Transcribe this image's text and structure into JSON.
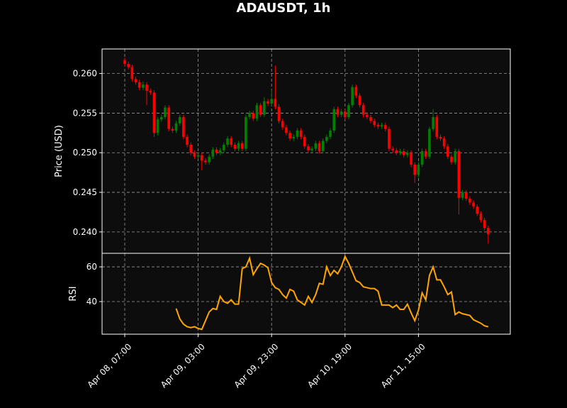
{
  "chart_data": [
    {
      "type": "candlestick",
      "title": "ADAUSDT, 1h",
      "ylabel": "Price (USD)",
      "up_color": "#008000",
      "down_color": "#ff0000",
      "grid": true,
      "ylim": [
        0.2373,
        0.2631
      ],
      "yticks": [
        {
          "value": 0.24,
          "label": "0.240"
        },
        {
          "value": 0.245,
          "label": "0.245"
        },
        {
          "value": 0.25,
          "label": "0.250"
        },
        {
          "value": 0.255,
          "label": "0.255"
        },
        {
          "value": 0.26,
          "label": "0.260"
        }
      ],
      "categories": [
        "Apr 08, 07:00",
        null,
        null,
        null,
        null,
        null,
        null,
        null,
        null,
        null,
        null,
        null,
        null,
        null,
        null,
        null,
        null,
        null,
        null,
        null,
        "Apr 09, 03:00",
        null,
        null,
        null,
        null,
        null,
        null,
        null,
        null,
        null,
        null,
        null,
        null,
        null,
        null,
        null,
        null,
        null,
        null,
        null,
        "Apr 09, 23:00",
        null,
        null,
        null,
        null,
        null,
        null,
        null,
        null,
        null,
        null,
        null,
        null,
        null,
        null,
        null,
        null,
        null,
        null,
        null,
        "Apr 10, 19:00",
        null,
        null,
        null,
        null,
        null,
        null,
        null,
        null,
        null,
        null,
        null,
        null,
        null,
        null,
        null,
        null,
        null,
        null,
        null,
        "Apr 11, 15:00",
        null,
        null,
        null,
        null,
        null,
        null,
        null,
        null,
        null,
        null,
        null,
        null,
        null,
        null,
        null,
        null,
        null,
        null,
        null
      ],
      "open": [
        0.2617,
        0.2612,
        0.2608,
        0.2593,
        0.2589,
        0.2582,
        0.2586,
        0.2578,
        0.2576,
        0.2525,
        0.2542,
        0.2545,
        0.2557,
        0.253,
        0.2528,
        0.2537,
        0.2545,
        0.252,
        0.251,
        0.25,
        0.2495,
        0.2497,
        0.249,
        0.2488,
        0.2495,
        0.2504,
        0.25,
        0.2503,
        0.251,
        0.2518,
        0.251,
        0.2505,
        0.2512,
        0.2505,
        0.2545,
        0.255,
        0.2543,
        0.256,
        0.2548,
        0.2565,
        0.2562,
        0.2568,
        0.2558,
        0.254,
        0.2532,
        0.2525,
        0.2518,
        0.252,
        0.2528,
        0.252,
        0.2508,
        0.2503,
        0.2505,
        0.2512,
        0.2502,
        0.2515,
        0.252,
        0.2528,
        0.2555,
        0.2548,
        0.2552,
        0.2545,
        0.256,
        0.2583,
        0.2572,
        0.256,
        0.2548,
        0.2545,
        0.254,
        0.2535,
        0.2533,
        0.2535,
        0.253,
        0.2505,
        0.2503,
        0.25,
        0.2502,
        0.2497,
        0.25,
        0.2485,
        0.2472,
        0.2485,
        0.2502,
        0.2495,
        0.253,
        0.2545,
        0.252,
        0.2518,
        0.2508,
        0.2495,
        0.2488,
        0.2502,
        0.2443,
        0.245,
        0.2442,
        0.2437,
        0.2432,
        0.2423,
        0.2415,
        0.2405
      ],
      "high": [
        0.262,
        0.2615,
        0.2611,
        0.2596,
        0.2592,
        0.259,
        0.2589,
        0.2581,
        0.2579,
        0.2545,
        0.2548,
        0.256,
        0.256,
        0.2533,
        0.254,
        0.2548,
        0.2548,
        0.2523,
        0.2513,
        0.2503,
        0.25,
        0.25,
        0.2493,
        0.2498,
        0.2507,
        0.2507,
        0.2506,
        0.2513,
        0.2521,
        0.2521,
        0.2513,
        0.2515,
        0.2515,
        0.2548,
        0.2553,
        0.2553,
        0.2563,
        0.2563,
        0.257,
        0.2568,
        0.258,
        0.261,
        0.2561,
        0.2543,
        0.2535,
        0.2528,
        0.2523,
        0.2531,
        0.2531,
        0.2523,
        0.2511,
        0.2508,
        0.2515,
        0.2515,
        0.2518,
        0.2523,
        0.2531,
        0.2558,
        0.2558,
        0.2555,
        0.2555,
        0.2563,
        0.2586,
        0.2586,
        0.2575,
        0.2563,
        0.2551,
        0.2548,
        0.2543,
        0.2538,
        0.2538,
        0.2538,
        0.2533,
        0.2508,
        0.2506,
        0.2505,
        0.2505,
        0.2503,
        0.2503,
        0.2488,
        0.2488,
        0.2505,
        0.2505,
        0.2533,
        0.2555,
        0.2548,
        0.2523,
        0.2521,
        0.2511,
        0.2498,
        0.2505,
        0.2505,
        0.2453,
        0.2453,
        0.2445,
        0.244,
        0.2435,
        0.2426,
        0.2418,
        0.2408
      ],
      "low": [
        0.2609,
        0.2605,
        0.259,
        0.2586,
        0.2579,
        0.2579,
        0.256,
        0.2573,
        0.252,
        0.2522,
        0.2539,
        0.2542,
        0.2527,
        0.2525,
        0.2525,
        0.2534,
        0.2517,
        0.2507,
        0.2497,
        0.2492,
        0.2492,
        0.2478,
        0.2485,
        0.2485,
        0.2492,
        0.2497,
        0.2497,
        0.25,
        0.2507,
        0.2507,
        0.2502,
        0.2502,
        0.2502,
        0.2502,
        0.2542,
        0.254,
        0.254,
        0.2545,
        0.2545,
        0.2559,
        0.2559,
        0.2555,
        0.2537,
        0.2529,
        0.2522,
        0.2515,
        0.2515,
        0.2517,
        0.2517,
        0.2505,
        0.25,
        0.25,
        0.2502,
        0.2499,
        0.2499,
        0.2512,
        0.2517,
        0.2525,
        0.2545,
        0.2545,
        0.2542,
        0.2542,
        0.2557,
        0.2569,
        0.2557,
        0.2545,
        0.2542,
        0.2537,
        0.2532,
        0.253,
        0.253,
        0.2527,
        0.2502,
        0.25,
        0.2497,
        0.2497,
        0.2494,
        0.2494,
        0.2482,
        0.2462,
        0.2469,
        0.2482,
        0.2492,
        0.2492,
        0.2527,
        0.2517,
        0.2515,
        0.2505,
        0.2492,
        0.2485,
        0.2485,
        0.2422,
        0.244,
        0.2439,
        0.2434,
        0.2429,
        0.242,
        0.2412,
        0.2402,
        0.2385
      ],
      "close": [
        0.2612,
        0.2608,
        0.2593,
        0.2589,
        0.2582,
        0.2586,
        0.2578,
        0.2576,
        0.2525,
        0.2542,
        0.2545,
        0.2557,
        0.253,
        0.2528,
        0.2537,
        0.2545,
        0.252,
        0.251,
        0.25,
        0.2495,
        0.2497,
        0.249,
        0.2488,
        0.2495,
        0.2504,
        0.25,
        0.2503,
        0.251,
        0.2518,
        0.251,
        0.2505,
        0.2512,
        0.2505,
        0.2545,
        0.255,
        0.2543,
        0.256,
        0.2548,
        0.2565,
        0.2562,
        0.2568,
        0.2558,
        0.254,
        0.2532,
        0.2525,
        0.2518,
        0.252,
        0.2528,
        0.252,
        0.2508,
        0.2503,
        0.2505,
        0.2512,
        0.2502,
        0.2515,
        0.252,
        0.2528,
        0.2555,
        0.2548,
        0.2552,
        0.2545,
        0.256,
        0.2583,
        0.2572,
        0.256,
        0.2548,
        0.2545,
        0.254,
        0.2535,
        0.2533,
        0.2535,
        0.253,
        0.2505,
        0.2503,
        0.25,
        0.2502,
        0.2497,
        0.25,
        0.2485,
        0.2472,
        0.2485,
        0.2502,
        0.2495,
        0.253,
        0.2545,
        0.252,
        0.2518,
        0.2508,
        0.2495,
        0.2488,
        0.2502,
        0.2443,
        0.245,
        0.2442,
        0.2437,
        0.2432,
        0.2423,
        0.2415,
        0.2405,
        0.2397
      ]
    },
    {
      "type": "line",
      "ylabel": "RSI",
      "color": "#ffa500",
      "grid": true,
      "ylim": [
        21.2,
        67.8
      ],
      "yticks": [
        40,
        60
      ],
      "values": [
        null,
        null,
        null,
        null,
        null,
        null,
        null,
        null,
        null,
        null,
        null,
        null,
        null,
        null,
        36,
        30,
        27,
        25.5,
        25,
        25.5,
        24.5,
        24,
        29,
        34,
        36,
        35.5,
        43,
        40,
        39,
        41,
        38.5,
        38.5,
        59,
        60,
        65,
        55.5,
        59,
        62,
        61,
        59.5,
        51,
        48,
        47,
        44,
        42,
        47,
        46,
        41,
        39.5,
        38,
        43,
        39.5,
        44,
        50.5,
        50,
        60,
        55,
        58,
        56,
        60,
        66,
        62,
        57,
        52,
        51,
        48.5,
        48,
        47.5,
        47.5,
        46,
        38,
        38,
        38,
        36.5,
        38,
        35.5,
        35.5,
        38.5,
        33.5,
        29,
        35,
        45,
        41,
        55,
        60,
        52.5,
        52.5,
        48.5,
        44,
        45.5,
        32.5,
        34,
        33,
        32.5,
        32,
        29.5,
        28.5,
        27.5,
        26,
        25.5
      ]
    }
  ]
}
